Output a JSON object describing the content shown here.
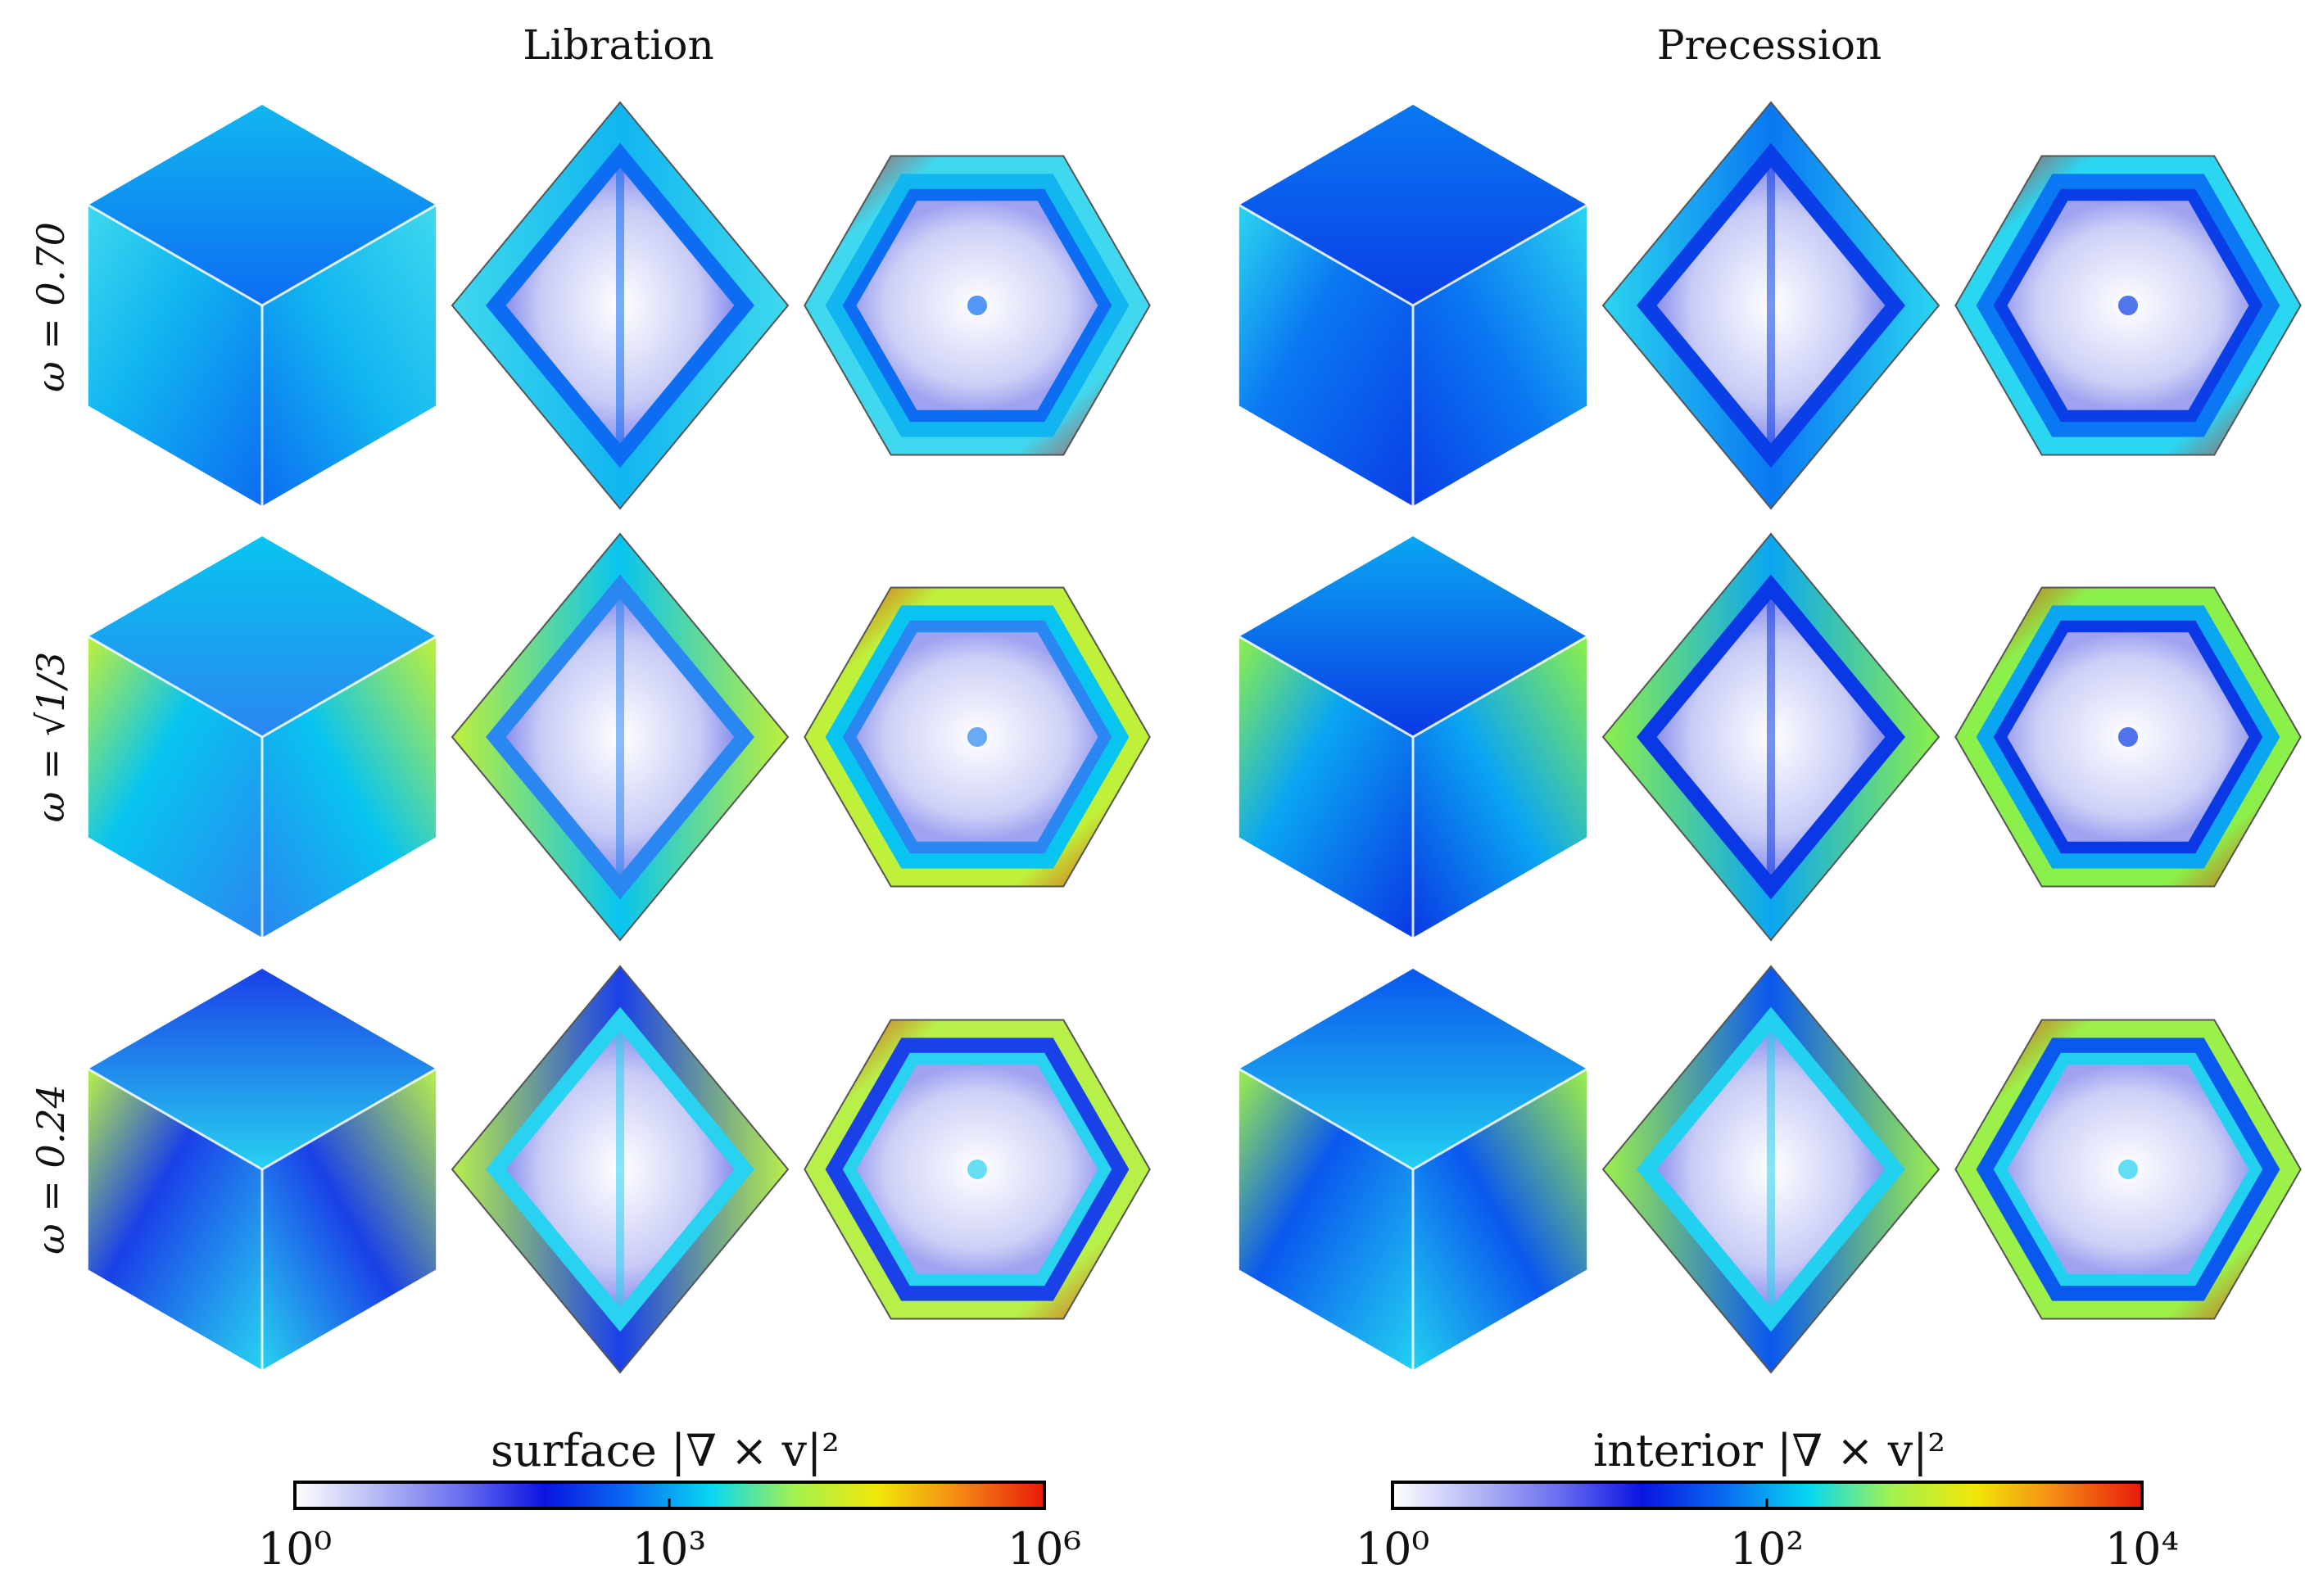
{
  "columns": {
    "libration": "Libration",
    "precession": "Precession"
  },
  "rows": [
    {
      "label": "ω = 0.70"
    },
    {
      "label": "ω = √1/3"
    },
    {
      "label": "ω = 0.24"
    }
  ],
  "colorbars": {
    "surface": {
      "title": "surface |∇ × v|²",
      "ticks": [
        "10⁰",
        "10³",
        "10⁶"
      ]
    },
    "interior": {
      "title": "interior |∇ × v|²",
      "ticks": [
        "10⁰",
        "10²",
        "10⁴"
      ]
    }
  },
  "colormap": [
    "#ffffff",
    "#b4b8f4",
    "#6a6ef0",
    "#0a14e0",
    "#0a6cf2",
    "#08d8f2",
    "#a4f24e",
    "#f2e60a",
    "#f48614",
    "#e81a0a"
  ],
  "panel_types": [
    "cube-surface",
    "diamond-section",
    "hexagon-section"
  ],
  "panel_styles": {
    "libration": [
      {
        "base": "#11b6f0",
        "accent": "#0c6cf2",
        "rim": "#3fd8ee"
      },
      {
        "base": "#08c4f0",
        "accent": "#2a86f0",
        "rim": "#bff03a"
      },
      {
        "base": "#1a40e8",
        "accent": "#28d2f0",
        "rim": "#b8f04a"
      }
    ],
    "precession": [
      {
        "base": "#0a78f2",
        "accent": "#0a3ee6",
        "rim": "#2ad6f0"
      },
      {
        "base": "#0aa6f2",
        "accent": "#0a38e4",
        "rim": "#8cf04a"
      },
      {
        "base": "#0a58ee",
        "accent": "#22d0f0",
        "rim": "#9cf04a"
      }
    ]
  }
}
